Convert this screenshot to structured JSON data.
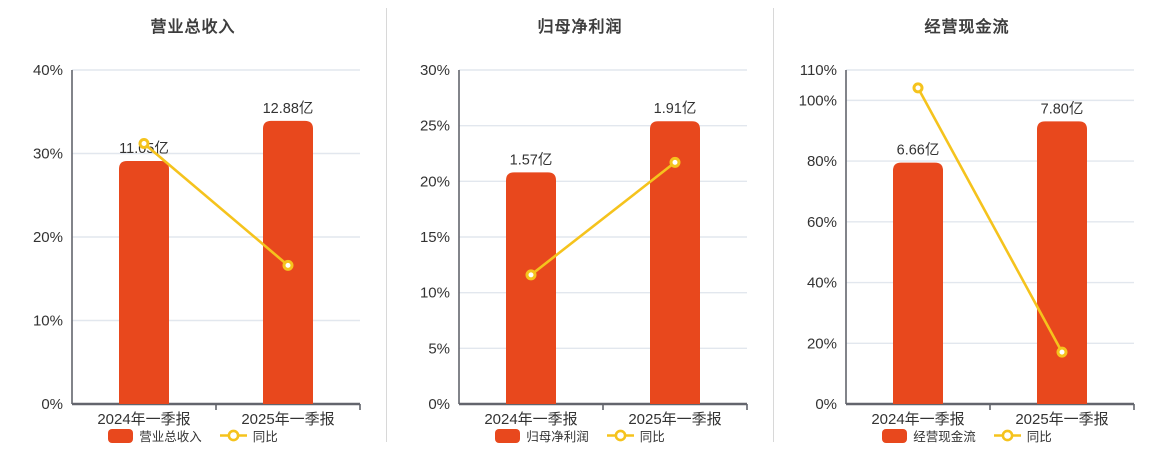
{
  "colors": {
    "bar": "#e8481d",
    "line": "#f5c31d",
    "grid": "#e2e7ee",
    "axis": "#63656d",
    "divider": "#d8d8d8",
    "title_text": "#3d3d3d",
    "tick_text": "#333333",
    "value_label_text": "#333333",
    "legend_text": "#333333",
    "marker_fill": "#ffffff",
    "background": "#ffffff"
  },
  "layout_hints": {
    "legend_position": "bottom",
    "grid": true,
    "panels": 3,
    "bar_corner_radius": 8
  },
  "chart_data": [
    {
      "type": "bar",
      "title": "营业总收入",
      "categories": [
        "2024年一季报",
        "2025年一季报"
      ],
      "xlabel": "",
      "ylabel": "",
      "ylim": [
        0,
        40
      ],
      "yticks": [
        0,
        10,
        20,
        30,
        40
      ],
      "ytick_suffix": "%",
      "series": [
        {
          "name": "营业总收入",
          "type": "bar",
          "unit": "亿",
          "values": [
            11.05,
            12.88
          ],
          "data_labels": [
            "11.05亿",
            "12.88亿"
          ],
          "bar_heights_axis_units": [
            29.1,
            33.9
          ]
        },
        {
          "name": "同比",
          "type": "line",
          "unit": "%",
          "values": [
            31.2,
            16.6
          ]
        }
      ]
    },
    {
      "type": "bar",
      "title": "归母净利润",
      "categories": [
        "2024年一季报",
        "2025年一季报"
      ],
      "xlabel": "",
      "ylabel": "",
      "ylim": [
        0,
        30
      ],
      "yticks": [
        0,
        5,
        10,
        15,
        20,
        25,
        30
      ],
      "ytick_suffix": "%",
      "series": [
        {
          "name": "归母净利润",
          "type": "bar",
          "unit": "亿",
          "values": [
            1.57,
            1.91
          ],
          "data_labels": [
            "1.57亿",
            "1.91亿"
          ],
          "bar_heights_axis_units": [
            20.8,
            25.4
          ]
        },
        {
          "name": "同比",
          "type": "line",
          "unit": "%",
          "values": [
            11.6,
            21.7
          ]
        }
      ]
    },
    {
      "type": "bar",
      "title": "经营现金流",
      "categories": [
        "2024年一季报",
        "2025年一季报"
      ],
      "xlabel": "",
      "ylabel": "",
      "ylim": [
        0,
        110
      ],
      "yticks": [
        0,
        20,
        40,
        60,
        80,
        100,
        110
      ],
      "ytick_suffix": "%",
      "series": [
        {
          "name": "经营现金流",
          "type": "bar",
          "unit": "亿",
          "values": [
            6.66,
            7.8
          ],
          "data_labels": [
            "6.66亿",
            "7.80亿"
          ],
          "bar_heights_axis_units": [
            79.5,
            93.1
          ]
        },
        {
          "name": "同比",
          "type": "line",
          "unit": "%",
          "values": [
            104.1,
            17.1
          ]
        }
      ]
    }
  ]
}
